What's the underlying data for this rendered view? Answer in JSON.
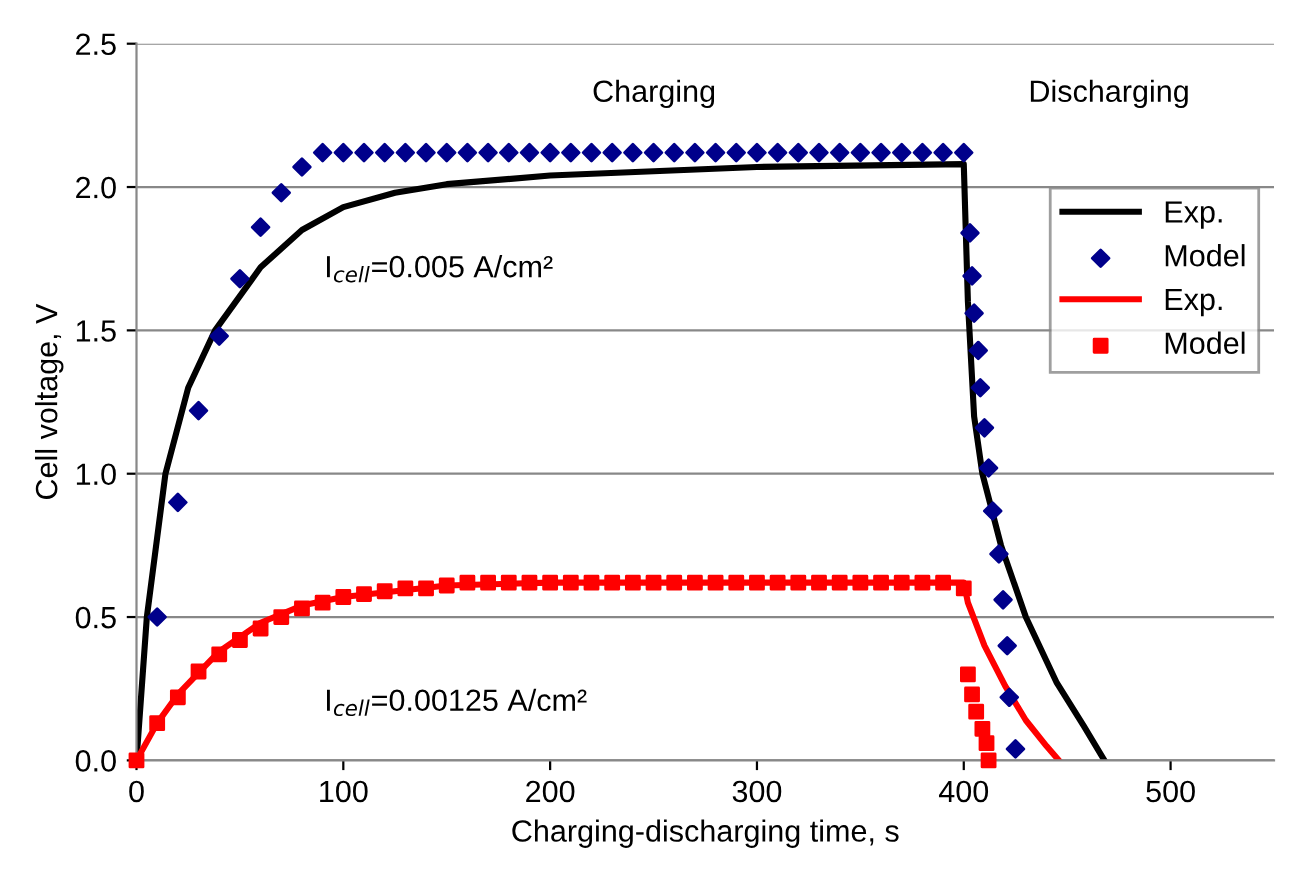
{
  "chart_data": {
    "type": "line",
    "xlabel": "Charging-discharging time, s",
    "ylabel": "Cell voltage, V",
    "xlim": [
      0,
      550
    ],
    "ylim": [
      0,
      2.5
    ],
    "xticks": [
      0,
      100,
      200,
      300,
      400,
      500
    ],
    "yticks": [
      {
        "value": 0,
        "label": "0.0"
      },
      0.5,
      {
        "value": 1,
        "label": "1.0"
      },
      1.5,
      {
        "value": 2,
        "label": "2.0"
      },
      2.5
    ],
    "grid": "y",
    "legend": "right",
    "annotations": [
      "Charging",
      "Discharging",
      "I$_{cell}$=0.005 A/cm²",
      "I$_{cell}$=0.00125 A/cm²"
    ],
    "series": [
      {
        "name": "Exp.",
        "color": "#000000",
        "line_style": "solid",
        "marker": "none",
        "x": [
          0,
          5,
          14,
          25,
          38,
          60,
          80,
          100,
          125,
          150,
          200,
          300,
          400,
          402,
          405,
          409,
          418,
          430,
          445,
          458,
          468
        ],
        "values": [
          0,
          0.5,
          1.0,
          1.3,
          1.5,
          1.72,
          1.85,
          1.93,
          1.98,
          2.01,
          2.04,
          2.07,
          2.08,
          1.6,
          1.2,
          1.0,
          0.75,
          0.5,
          0.27,
          0.12,
          0
        ]
      },
      {
        "name": "Model",
        "type": "scatter",
        "color": "#00008b",
        "marker": "diamond",
        "x": [
          10,
          20,
          30,
          40,
          50,
          60,
          70,
          80,
          90,
          100,
          110,
          120,
          130,
          140,
          150,
          160,
          170,
          180,
          190,
          200,
          210,
          220,
          230,
          240,
          250,
          260,
          270,
          280,
          290,
          300,
          310,
          320,
          330,
          340,
          350,
          360,
          370,
          380,
          390,
          400,
          403,
          404,
          405,
          407,
          408,
          410,
          412,
          414,
          417,
          419,
          421,
          422,
          425
        ],
        "values": [
          0.5,
          0.9,
          1.22,
          1.48,
          1.68,
          1.86,
          1.98,
          2.07,
          2.12,
          2.12,
          2.12,
          2.12,
          2.12,
          2.12,
          2.12,
          2.12,
          2.12,
          2.12,
          2.12,
          2.12,
          2.12,
          2.12,
          2.12,
          2.12,
          2.12,
          2.12,
          2.12,
          2.12,
          2.12,
          2.12,
          2.12,
          2.12,
          2.12,
          2.12,
          2.12,
          2.12,
          2.12,
          2.12,
          2.12,
          2.12,
          1.84,
          1.69,
          1.56,
          1.43,
          1.3,
          1.16,
          1.02,
          0.87,
          0.72,
          0.56,
          0.4,
          0.22,
          0.04
        ]
      },
      {
        "name": "Exp.",
        "color": "#ff0000",
        "line_style": "solid",
        "marker": "none",
        "x": [
          0,
          10,
          20,
          40,
          60,
          80,
          100,
          150,
          200,
          300,
          400,
          402,
          410,
          420,
          430,
          440,
          446
        ],
        "values": [
          0,
          0.13,
          0.23,
          0.38,
          0.48,
          0.54,
          0.57,
          0.61,
          0.62,
          0.62,
          0.62,
          0.55,
          0.4,
          0.26,
          0.14,
          0.05,
          0
        ]
      },
      {
        "name": "Model",
        "type": "scatter",
        "color": "#ff0000",
        "marker": "square",
        "x": [
          0,
          10,
          20,
          30,
          40,
          50,
          60,
          70,
          80,
          90,
          100,
          110,
          120,
          130,
          140,
          150,
          160,
          170,
          180,
          190,
          200,
          210,
          220,
          230,
          240,
          250,
          260,
          270,
          280,
          290,
          300,
          310,
          320,
          330,
          340,
          350,
          360,
          370,
          380,
          390,
          400,
          402,
          404,
          406,
          409,
          411,
          412
        ],
        "values": [
          0,
          0.13,
          0.22,
          0.31,
          0.37,
          0.42,
          0.46,
          0.5,
          0.53,
          0.55,
          0.57,
          0.58,
          0.59,
          0.6,
          0.6,
          0.61,
          0.62,
          0.62,
          0.62,
          0.62,
          0.62,
          0.62,
          0.62,
          0.62,
          0.62,
          0.62,
          0.62,
          0.62,
          0.62,
          0.62,
          0.62,
          0.62,
          0.62,
          0.62,
          0.62,
          0.62,
          0.62,
          0.62,
          0.62,
          0.62,
          0.6,
          0.3,
          0.23,
          0.17,
          0.11,
          0.06,
          0.0
        ]
      }
    ]
  }
}
